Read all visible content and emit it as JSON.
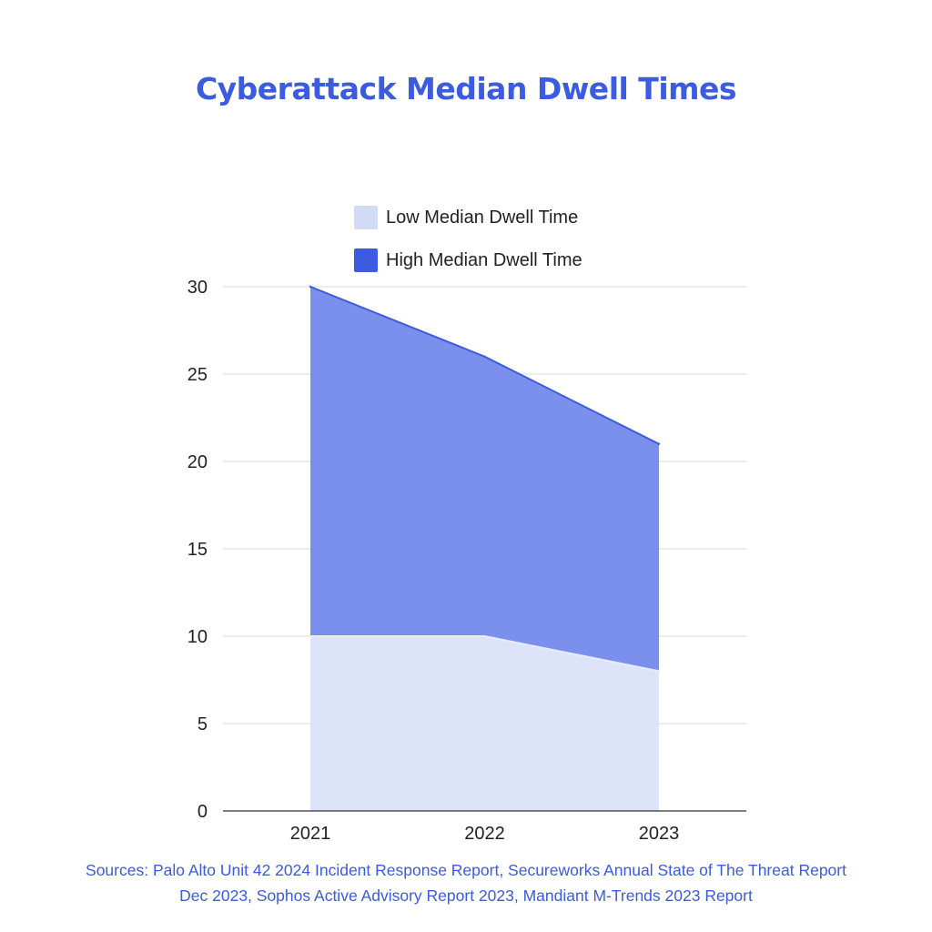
{
  "chart_data": {
    "type": "area",
    "title": "Cyberattack Median Dwell Times",
    "categories": [
      "2021",
      "2022",
      "2023"
    ],
    "series": [
      {
        "name": "Low Median Dwell Time",
        "values": [
          10,
          10,
          8
        ],
        "color": "#dde3f8"
      },
      {
        "name": "High Median Dwell Time",
        "values": [
          30,
          26,
          21
        ],
        "color": "#3b5be0"
      }
    ],
    "xlabel": "",
    "ylabel": "",
    "ylim": [
      0,
      30
    ],
    "yticks": [
      "0",
      "5",
      "10",
      "15",
      "20",
      "25",
      "30"
    ],
    "grid": true,
    "legend_position": "top-center",
    "fill_colors": {
      "high_area": "#7b8fed",
      "low_area": "#dde3f8"
    }
  },
  "sources": {
    "line1": "Sources: Palo Alto Unit 42 2024 Incident Response Report, Secureworks Annual State of The Threat Report",
    "line2": "Dec 2023, Sophos Active Advisory Report 2023, Mandiant M-Trends 2023 Report"
  }
}
